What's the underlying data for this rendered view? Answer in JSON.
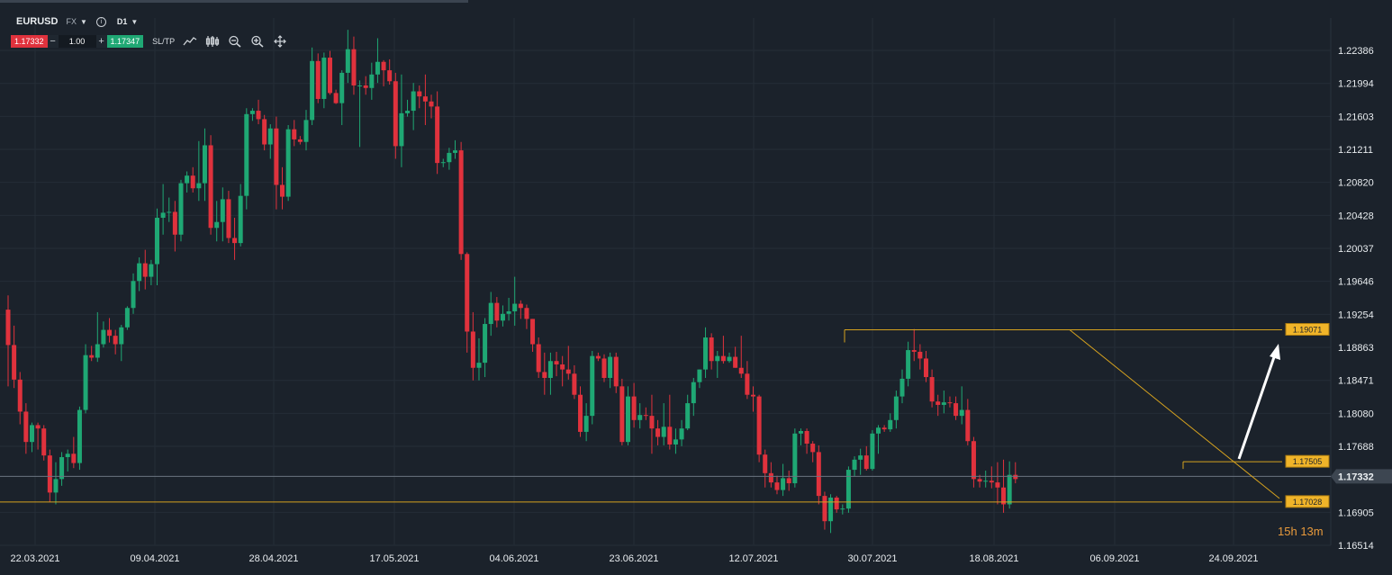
{
  "header": {
    "symbol": "EURUSD",
    "market": "FX",
    "timeframe": "D1",
    "sell_price": "1.17332",
    "buy_price": "1.17347",
    "quantity": "1.00",
    "minus": "−",
    "plus": "+",
    "sltp_label": "SL/TP"
  },
  "countdown": {
    "hours": "15",
    "h": "h",
    "minutes": "13",
    "m": "m"
  },
  "colors": {
    "bull": "#1fa874",
    "bear": "#e0323d",
    "line": "#d6a21f",
    "label_bg": "#f0b429",
    "arrow": "#ffffff"
  },
  "chart_data": {
    "type": "candlestick",
    "symbol": "EURUSD",
    "timeframe": "D1",
    "y_ticks": [
      "1.22386",
      "1.21994",
      "1.21603",
      "1.21211",
      "1.20820",
      "1.20428",
      "1.20037",
      "1.19646",
      "1.19254",
      "1.18863",
      "1.18471",
      "1.18080",
      "1.17688",
      "1.17332",
      "1.16905",
      "1.16514"
    ],
    "ylim": [
      1.16514,
      1.22386
    ],
    "current_price": "1.17332",
    "x_labels": [
      "22.03.2021",
      "09.04.2021",
      "28.04.2021",
      "17.05.2021",
      "04.06.2021",
      "23.06.2021",
      "12.07.2021",
      "30.07.2021",
      "18.08.2021",
      "06.09.2021",
      "24.09.2021"
    ],
    "horizontal_levels": [
      {
        "price": 1.19071,
        "label": "1.19071"
      },
      {
        "price": 1.17505,
        "label": "1.17505"
      },
      {
        "price": 1.17028,
        "label": "1.17028"
      }
    ],
    "candles": [
      [
        1.1931,
        1.1948,
        1.184,
        1.1889
      ],
      [
        1.1889,
        1.1912,
        1.1838,
        1.1848
      ],
      [
        1.1848,
        1.1857,
        1.1795,
        1.181
      ],
      [
        1.181,
        1.182,
        1.176,
        1.1774
      ],
      [
        1.1774,
        1.1797,
        1.1762,
        1.1794
      ],
      [
        1.1794,
        1.1797,
        1.1765,
        1.179
      ],
      [
        1.179,
        1.1794,
        1.1752,
        1.1758
      ],
      [
        1.1758,
        1.1765,
        1.1703,
        1.1714
      ],
      [
        1.1714,
        1.175,
        1.17,
        1.173
      ],
      [
        1.173,
        1.1762,
        1.1722,
        1.1756
      ],
      [
        1.1756,
        1.1765,
        1.1739,
        1.176
      ],
      [
        1.176,
        1.178,
        1.1743,
        1.1749
      ],
      [
        1.1749,
        1.1816,
        1.1741,
        1.1812
      ],
      [
        1.1812,
        1.189,
        1.1808,
        1.1877
      ],
      [
        1.1877,
        1.1888,
        1.187,
        1.1874
      ],
      [
        1.1874,
        1.1928,
        1.1869,
        1.189
      ],
      [
        1.189,
        1.1917,
        1.1886,
        1.1907
      ],
      [
        1.1907,
        1.1921,
        1.1892,
        1.19
      ],
      [
        1.19,
        1.1907,
        1.1878,
        1.189
      ],
      [
        1.189,
        1.1913,
        1.187,
        1.191
      ],
      [
        1.191,
        1.1935,
        1.1907,
        1.1933
      ],
      [
        1.1933,
        1.1974,
        1.1926,
        1.1965
      ],
      [
        1.1965,
        1.1993,
        1.1953,
        1.1986
      ],
      [
        1.1986,
        1.2002,
        1.1955,
        1.197
      ],
      [
        1.197,
        1.199,
        1.196,
        1.1985
      ],
      [
        1.1985,
        1.2051,
        1.196,
        1.204
      ],
      [
        1.204,
        1.208,
        1.202,
        1.2046
      ],
      [
        1.2046,
        1.2064,
        1.2035,
        1.2047
      ],
      [
        1.2047,
        1.206,
        1.2,
        1.202
      ],
      [
        1.202,
        1.2085,
        1.2012,
        1.2081
      ],
      [
        1.2081,
        1.2095,
        1.207,
        1.209
      ],
      [
        1.209,
        1.21,
        1.207,
        1.2075
      ],
      [
        1.2075,
        1.2131,
        1.206,
        1.2081
      ],
      [
        1.2081,
        1.2146,
        1.206,
        1.2126
      ],
      [
        1.2126,
        1.2138,
        1.202,
        1.2028
      ],
      [
        1.2028,
        1.206,
        1.2012,
        1.2035
      ],
      [
        1.2035,
        1.2076,
        1.2012,
        1.2062
      ],
      [
        1.2062,
        1.2072,
        1.201,
        1.2016
      ],
      [
        1.2016,
        1.204,
        1.199,
        1.201
      ],
      [
        1.201,
        1.208,
        1.2006,
        1.2066
      ],
      [
        1.2066,
        1.217,
        1.205,
        1.2163
      ],
      [
        1.2163,
        1.217,
        1.2155,
        1.2167
      ],
      [
        1.2167,
        1.218,
        1.2151,
        1.2157
      ],
      [
        1.2157,
        1.2162,
        1.212,
        1.2127
      ],
      [
        1.2127,
        1.2151,
        1.211,
        1.2146
      ],
      [
        1.2146,
        1.216,
        1.205,
        1.2079
      ],
      [
        1.2079,
        1.21,
        1.205,
        1.2065
      ],
      [
        1.2065,
        1.215,
        1.206,
        1.2145
      ],
      [
        1.2145,
        1.2156,
        1.2125,
        1.2133
      ],
      [
        1.2133,
        1.2137,
        1.2127,
        1.213
      ],
      [
        1.213,
        1.2168,
        1.212,
        1.2156
      ],
      [
        1.2156,
        1.2242,
        1.215,
        1.2226
      ],
      [
        1.2226,
        1.2235,
        1.2176,
        1.2181
      ],
      [
        1.2181,
        1.2236,
        1.217,
        1.223
      ],
      [
        1.223,
        1.2238,
        1.2186,
        1.2188
      ],
      [
        1.2188,
        1.2192,
        1.2175,
        1.2176
      ],
      [
        1.2176,
        1.2215,
        1.215,
        1.2212
      ],
      [
        1.2212,
        1.2263,
        1.22,
        1.224
      ],
      [
        1.224,
        1.2255,
        1.2186,
        1.2197
      ],
      [
        1.2197,
        1.2203,
        1.2124,
        1.2197
      ],
      [
        1.2197,
        1.2208,
        1.2186,
        1.2194
      ],
      [
        1.2194,
        1.2224,
        1.218,
        1.221
      ],
      [
        1.221,
        1.2253,
        1.22,
        1.2225
      ],
      [
        1.2225,
        1.2227,
        1.2196,
        1.2215
      ],
      [
        1.2215,
        1.2228,
        1.2198,
        1.2202
      ],
      [
        1.2202,
        1.2212,
        1.211,
        1.2125
      ],
      [
        1.2125,
        1.221,
        1.21,
        1.2164
      ],
      [
        1.2164,
        1.218,
        1.216,
        1.2167
      ],
      [
        1.2167,
        1.22,
        1.2144,
        1.219
      ],
      [
        1.219,
        1.2197,
        1.217,
        1.2184
      ],
      [
        1.2184,
        1.221,
        1.215,
        1.2178
      ],
      [
        1.2178,
        1.2186,
        1.2158,
        1.2172
      ],
      [
        1.2172,
        1.219,
        1.2092,
        1.2105
      ],
      [
        1.2105,
        1.211,
        1.21,
        1.2106
      ],
      [
        1.2106,
        1.2123,
        1.2097,
        1.2117
      ],
      [
        1.2117,
        1.2132,
        1.211,
        1.212
      ],
      [
        1.212,
        1.213,
        1.199,
        1.1997
      ],
      [
        1.1997,
        1.1999,
        1.188,
        1.1905
      ],
      [
        1.1905,
        1.1928,
        1.1847,
        1.1862
      ],
      [
        1.1862,
        1.1897,
        1.1847,
        1.1868
      ],
      [
        1.1868,
        1.1921,
        1.1851,
        1.1914
      ],
      [
        1.1914,
        1.1952,
        1.19,
        1.1939
      ],
      [
        1.1939,
        1.1946,
        1.191,
        1.1918
      ],
      [
        1.1918,
        1.1936,
        1.1911,
        1.1926
      ],
      [
        1.1926,
        1.1945,
        1.1918,
        1.1929
      ],
      [
        1.1929,
        1.197,
        1.1912,
        1.1938
      ],
      [
        1.1938,
        1.1942,
        1.192,
        1.1933
      ],
      [
        1.1933,
        1.1937,
        1.1908,
        1.192
      ],
      [
        1.192,
        1.192,
        1.1881,
        1.189
      ],
      [
        1.189,
        1.1898,
        1.185,
        1.1857
      ],
      [
        1.1857,
        1.188,
        1.183,
        1.185
      ],
      [
        1.185,
        1.188,
        1.183,
        1.187
      ],
      [
        1.187,
        1.1881,
        1.1852,
        1.1866
      ],
      [
        1.1866,
        1.1876,
        1.184,
        1.186
      ],
      [
        1.186,
        1.1888,
        1.1848,
        1.1855
      ],
      [
        1.1855,
        1.1865,
        1.1825,
        1.183
      ],
      [
        1.183,
        1.184,
        1.178,
        1.1786
      ],
      [
        1.1786,
        1.182,
        1.1775,
        1.1805
      ],
      [
        1.1805,
        1.1882,
        1.1795,
        1.1876
      ],
      [
        1.1876,
        1.188,
        1.187,
        1.1873
      ],
      [
        1.1873,
        1.1878,
        1.1845,
        1.185
      ],
      [
        1.185,
        1.188,
        1.1838,
        1.1875
      ],
      [
        1.1875,
        1.188,
        1.1832,
        1.184
      ],
      [
        1.184,
        1.1849,
        1.177,
        1.1774
      ],
      [
        1.1774,
        1.184,
        1.177,
        1.1828
      ],
      [
        1.1828,
        1.1844,
        1.1791,
        1.18
      ],
      [
        1.18,
        1.182,
        1.179,
        1.1806
      ],
      [
        1.1806,
        1.1815,
        1.18,
        1.1805
      ],
      [
        1.1805,
        1.183,
        1.176,
        1.179
      ],
      [
        1.179,
        1.18,
        1.177,
        1.178
      ],
      [
        1.178,
        1.182,
        1.177,
        1.1792
      ],
      [
        1.1792,
        1.183,
        1.1765,
        1.1771
      ],
      [
        1.1771,
        1.179,
        1.176,
        1.1777
      ],
      [
        1.1777,
        1.18,
        1.1769,
        1.179
      ],
      [
        1.179,
        1.183,
        1.1788,
        1.182
      ],
      [
        1.182,
        1.185,
        1.1805,
        1.1845
      ],
      [
        1.1845,
        1.186,
        1.1838,
        1.186
      ],
      [
        1.186,
        1.191,
        1.185,
        1.1898
      ],
      [
        1.1898,
        1.1903,
        1.186,
        1.187
      ],
      [
        1.187,
        1.1882,
        1.185,
        1.1876
      ],
      [
        1.1876,
        1.19,
        1.1867,
        1.187
      ],
      [
        1.187,
        1.188,
        1.1868,
        1.1875
      ],
      [
        1.1875,
        1.1887,
        1.1862,
        1.1862
      ],
      [
        1.1862,
        1.19,
        1.185,
        1.1855
      ],
      [
        1.1855,
        1.187,
        1.1825,
        1.183
      ],
      [
        1.183,
        1.184,
        1.181,
        1.1828
      ],
      [
        1.1828,
        1.183,
        1.175,
        1.1759
      ],
      [
        1.1759,
        1.1765,
        1.172,
        1.1737
      ],
      [
        1.1737,
        1.175,
        1.172,
        1.1726
      ],
      [
        1.1726,
        1.1734,
        1.1712,
        1.1717
      ],
      [
        1.1717,
        1.1748,
        1.171,
        1.1731
      ],
      [
        1.1731,
        1.174,
        1.1716,
        1.1725
      ],
      [
        1.1725,
        1.179,
        1.172,
        1.1784
      ],
      [
        1.1784,
        1.179,
        1.177,
        1.1787
      ],
      [
        1.1787,
        1.179,
        1.176,
        1.1772
      ],
      [
        1.1772,
        1.1775,
        1.175,
        1.1762
      ],
      [
        1.1762,
        1.177,
        1.17,
        1.171
      ],
      [
        1.171,
        1.1715,
        1.167,
        1.168
      ],
      [
        1.168,
        1.1712,
        1.1666,
        1.1708
      ],
      [
        1.1708,
        1.171,
        1.169,
        1.1694
      ],
      [
        1.1694,
        1.17,
        1.1688,
        1.1695
      ],
      [
        1.1695,
        1.1745,
        1.169,
        1.1741
      ],
      [
        1.1741,
        1.1757,
        1.1733,
        1.1753
      ],
      [
        1.1753,
        1.1766,
        1.1735,
        1.1758
      ],
      [
        1.1758,
        1.1769,
        1.174,
        1.1742
      ],
      [
        1.1742,
        1.1788,
        1.174,
        1.1784
      ],
      [
        1.1784,
        1.1794,
        1.176,
        1.1791
      ],
      [
        1.1791,
        1.1794,
        1.1786,
        1.1789
      ],
      [
        1.1789,
        1.1808,
        1.1786,
        1.18
      ],
      [
        1.18,
        1.1835,
        1.179,
        1.1828
      ],
      [
        1.1828,
        1.186,
        1.182,
        1.1849
      ],
      [
        1.1849,
        1.1893,
        1.184,
        1.1883
      ],
      [
        1.1883,
        1.1908,
        1.187,
        1.1881
      ],
      [
        1.1881,
        1.189,
        1.186,
        1.1873
      ],
      [
        1.1873,
        1.1882,
        1.1845,
        1.1851
      ],
      [
        1.1851,
        1.186,
        1.1815,
        1.1822
      ],
      [
        1.1822,
        1.183,
        1.1805,
        1.1818
      ],
      [
        1.1818,
        1.1835,
        1.1808,
        1.1821
      ],
      [
        1.1821,
        1.1828,
        1.1815,
        1.182
      ],
      [
        1.182,
        1.1828,
        1.18,
        1.1805
      ],
      [
        1.1805,
        1.184,
        1.1795,
        1.1812
      ],
      [
        1.1812,
        1.1825,
        1.177,
        1.1775
      ],
      [
        1.1775,
        1.178,
        1.172,
        1.173
      ],
      [
        1.173,
        1.1735,
        1.172,
        1.1727
      ],
      [
        1.1727,
        1.174,
        1.172,
        1.1728
      ],
      [
        1.1728,
        1.1745,
        1.1719,
        1.1726
      ],
      [
        1.1726,
        1.175,
        1.17,
        1.172
      ],
      [
        1.172,
        1.1753,
        1.169,
        1.17
      ],
      [
        1.17,
        1.1751,
        1.1695,
        1.1735
      ],
      [
        1.1735,
        1.175,
        1.1725,
        1.173
      ]
    ]
  }
}
